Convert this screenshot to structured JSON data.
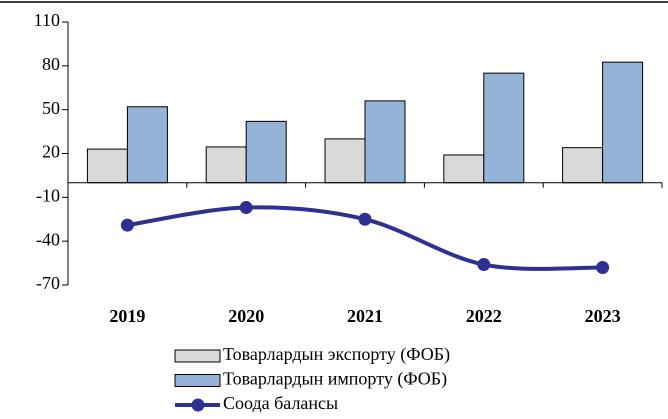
{
  "chart_data": {
    "type": "bar_line",
    "categories": [
      "2019",
      "2020",
      "2021",
      "2022",
      "2023"
    ],
    "series": [
      {
        "name": "Товарлардын экспорту (ФОБ)",
        "type": "bar",
        "color": "#d9d9d9",
        "values": [
          23,
          24.5,
          30,
          19,
          24
        ]
      },
      {
        "name": "Товарлардын импорту (ФОБ)",
        "type": "bar",
        "color": "#95b3d7",
        "values": [
          52,
          42,
          56,
          75,
          82.5
        ]
      },
      {
        "name": "Соода балансы",
        "type": "line",
        "color": "#2e3192",
        "values": [
          -29,
          -17,
          -25,
          -56,
          -58
        ]
      }
    ],
    "ylim": [
      -70,
      110
    ],
    "yticks": [
      -70,
      -40,
      -10,
      20,
      50,
      80,
      110
    ]
  }
}
